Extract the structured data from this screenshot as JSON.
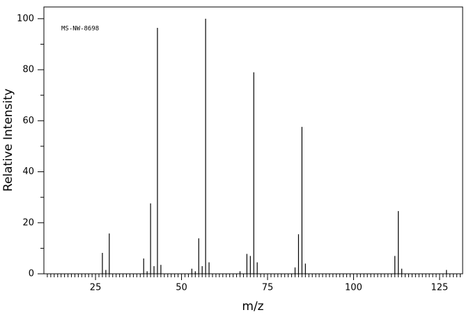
{
  "chart_data": {
    "type": "spectrum",
    "annotation": "MS-NW-8698",
    "x_label": "m/z",
    "y_label": "Relative Intensity",
    "x": [
      27,
      28,
      29,
      39,
      40,
      41,
      42,
      43,
      44,
      53,
      54,
      55,
      56,
      57,
      58,
      67,
      69,
      70,
      71,
      72,
      83,
      84,
      85,
      86,
      112,
      113,
      114,
      127
    ],
    "values": [
      8.2,
      1.5,
      15.8,
      6,
      1,
      27.6,
      3,
      96.4,
      3.5,
      2,
      1,
      13.9,
      3,
      100,
      4.5,
      1,
      7.8,
      7,
      79,
      4.5,
      2.5,
      15.5,
      57.6,
      4,
      7,
      24.6,
      2,
      1.5
    ],
    "color": "#000000",
    "xlim": [
      10,
      131.7
    ],
    "ylim": [
      0,
      104.6
    ],
    "xticks": [
      25,
      50,
      75,
      100,
      125
    ],
    "yticks": [
      0,
      20,
      40,
      60,
      80,
      100
    ],
    "xminorticks": [
      11,
      12,
      13,
      14,
      15,
      16,
      17,
      18,
      19,
      20,
      21,
      22,
      23,
      24,
      26,
      27,
      28,
      29,
      30,
      31,
      32,
      33,
      34,
      35,
      36,
      37,
      38,
      39,
      40,
      41,
      42,
      43,
      44,
      45,
      46,
      47,
      48,
      49,
      51,
      52,
      53,
      54,
      55,
      56,
      57,
      58,
      59,
      60,
      61,
      62,
      63,
      64,
      65,
      66,
      67,
      68,
      69,
      70,
      71,
      72,
      73,
      74,
      76,
      77,
      78,
      79,
      80,
      81,
      82,
      83,
      84,
      85,
      86,
      87,
      88,
      89,
      90,
      91,
      92,
      93,
      94,
      95,
      96,
      97,
      98,
      99,
      101,
      102,
      103,
      104,
      105,
      106,
      107,
      108,
      109,
      110,
      111,
      112,
      113,
      114,
      115,
      116,
      117,
      118,
      119,
      120,
      121,
      122,
      123,
      124,
      126,
      127,
      128,
      129,
      130,
      131
    ],
    "yminorticks": [
      10,
      30,
      50,
      70,
      90
    ]
  }
}
